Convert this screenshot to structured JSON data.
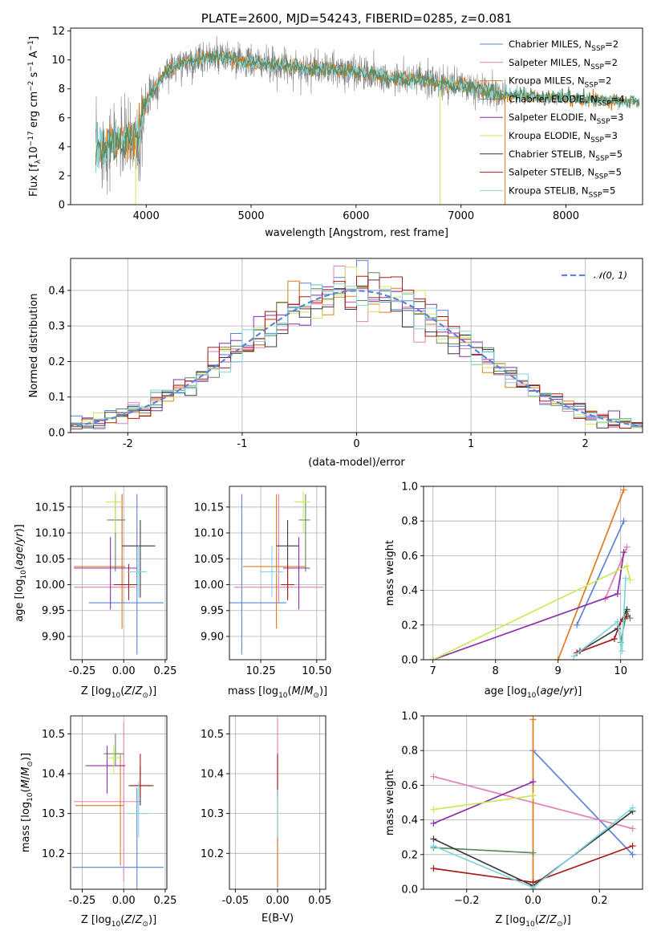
{
  "colors": {
    "Chabrier MILES": "#5b84d6",
    "Salpeter MILES": "#e57fb8",
    "Kroupa MILES": "#e07b1c",
    "Chabrier ELODIE": "#5f8a5f",
    "Salpeter ELODIE": "#8b2fa8",
    "Kroupa ELODIE": "#c9e85a",
    "Chabrier STELIB": "#3c3c3c",
    "Salpeter STELIB": "#a81c1c",
    "Kroupa STELIB": "#7fd6dc"
  },
  "chart_data": [
    {
      "id": "spectrum",
      "type": "line",
      "title": "PLATE=2600, MJD=54243, FIBERID=0285, z=0.081",
      "xlabel": "wavelength [Angstrom, rest frame]",
      "ylabel": "Flux [fλ10⁻¹⁷ erg cm⁻² s⁻¹ A⁻¹]",
      "xlim": [
        3280,
        8730
      ],
      "ylim": [
        0,
        12.2
      ],
      "xticks": [
        4000,
        5000,
        6000,
        7000,
        8000
      ],
      "yticks": [
        0,
        2,
        4,
        6,
        8,
        10,
        12
      ],
      "grid": false,
      "legend_placement": "top-right",
      "legend": [
        {
          "name": "Chabrier MILES",
          "nssp": "2"
        },
        {
          "name": "Salpeter MILES",
          "nssp": "2"
        },
        {
          "name": "Kroupa MILES",
          "nssp": "2"
        },
        {
          "name": "Chabrier ELODIE",
          "nssp": "4"
        },
        {
          "name": "Salpeter ELODIE",
          "nssp": "3"
        },
        {
          "name": "Kroupa ELODIE",
          "nssp": "3"
        },
        {
          "name": "Chabrier STELIB",
          "nssp": "5"
        },
        {
          "name": "Salpeter STELIB",
          "nssp": "5"
        },
        {
          "name": "Kroupa STELIB",
          "nssp": "5"
        }
      ],
      "continuum_wavelength": [
        3520,
        3700,
        3900,
        4000,
        4200,
        4400,
        4600,
        4800,
        5000,
        5200,
        5400,
        5600,
        5800,
        6000,
        6200,
        6400,
        6600,
        6800,
        7000,
        7200,
        7400,
        7600,
        7800,
        8000,
        8200,
        8400,
        8700
      ],
      "continuum_flux": [
        3.8,
        4.3,
        4.6,
        7.2,
        9.3,
        9.9,
        10.2,
        10.1,
        9.8,
        9.7,
        9.5,
        9.4,
        9.3,
        9.2,
        8.9,
        8.7,
        8.6,
        8.4,
        8.2,
        7.9,
        7.6,
        7.5,
        7.4,
        7.4,
        7.3,
        7.2,
        7.1
      ],
      "observed_xrange": [
        3520,
        7430
      ],
      "model_xrange": [
        3520,
        8700
      ]
    },
    {
      "id": "residuals",
      "type": "histogram",
      "xlabel": "(data-model)/error",
      "ylabel": "Normed distribution",
      "xlim": [
        -2.5,
        2.5
      ],
      "ylim": [
        0,
        0.49
      ],
      "xticks": [
        -2,
        -1,
        0,
        1,
        2
      ],
      "yticks": [
        0.0,
        0.1,
        0.2,
        0.3,
        0.4
      ],
      "grid": true,
      "legend_placement": "top-right",
      "legend": [
        {
          "name": "𝒩(0, 1)",
          "style": "dashed"
        }
      ],
      "bin_width": 0.1,
      "reference": {
        "name": "N(0,1)",
        "mean": 0,
        "sigma": 1
      }
    },
    {
      "id": "age-vs-Z",
      "type": "errorbar",
      "xlabel": "Z [log10(Z/Z⊙)]",
      "ylabel": "age  [log10(age/yr)]",
      "xlim": [
        -0.32,
        0.26
      ],
      "ylim": [
        9.855,
        10.19
      ],
      "xticks": [
        -0.25,
        0.0,
        0.25
      ],
      "yticks": [
        9.9,
        9.95,
        10.0,
        10.05,
        10.1,
        10.15
      ],
      "grid": true,
      "points": [
        {
          "series": "Chabrier MILES",
          "x": 0.08,
          "y": 9.965,
          "xerr": [
            0.29,
            0.16
          ],
          "yerr": [
            0.1,
            0.21
          ]
        },
        {
          "series": "Salpeter MILES",
          "x": -0.01,
          "y": 9.995,
          "xerr": [
            0.29,
            0.08
          ],
          "yerr": [
            0.03,
            0.18
          ]
        },
        {
          "series": "Kroupa MILES",
          "x": -0.01,
          "y": 10.035,
          "xerr": [
            0.29,
            0.02
          ],
          "yerr": [
            0.12,
            0.14
          ]
        },
        {
          "series": "Chabrier ELODIE",
          "x": -0.05,
          "y": 10.125,
          "xerr": [
            0.05,
            0.06
          ],
          "yerr": [
            0.1,
            0.05
          ]
        },
        {
          "series": "Salpeter ELODIE",
          "x": -0.08,
          "y": 10.032,
          "xerr": [
            0.22,
            0.16
          ],
          "yerr": [
            0.08,
            0.06
          ]
        },
        {
          "series": "Kroupa ELODIE",
          "x": -0.05,
          "y": 10.16,
          "xerr": [
            0.06,
            0.05
          ],
          "yerr": [
            0.06,
            0.02
          ]
        },
        {
          "series": "Chabrier STELIB",
          "x": 0.1,
          "y": 10.075,
          "xerr": [
            0.11,
            0.09
          ],
          "yerr": [
            0.1,
            0.05
          ]
        },
        {
          "series": "Salpeter STELIB",
          "x": 0.03,
          "y": 10.0,
          "xerr": [
            0.09,
            0.05
          ],
          "yerr": [
            0.03,
            0.04
          ]
        },
        {
          "series": "Kroupa STELIB",
          "x": 0.09,
          "y": 10.025,
          "xerr": [
            0.07,
            0.05
          ],
          "yerr": [
            0.05,
            0.05
          ]
        }
      ]
    },
    {
      "id": "age-vs-mass",
      "type": "errorbar",
      "xlabel": "mass [log10(M/M⊙)]",
      "ylabel": "",
      "xlim": [
        10.11,
        10.54
      ],
      "ylim": [
        9.855,
        10.19
      ],
      "xticks": [
        10.25,
        10.5
      ],
      "yticks": [
        9.9,
        9.95,
        10.0,
        10.05,
        10.1,
        10.15
      ],
      "grid": true,
      "points": [
        {
          "series": "Chabrier MILES",
          "x": 10.165,
          "y": 9.965,
          "xerr": [
            0.12,
            0.2
          ],
          "yerr": [
            0.1,
            0.21
          ]
        },
        {
          "series": "Salpeter MILES",
          "x": 10.33,
          "y": 9.995,
          "xerr": [
            0.2,
            0.2
          ],
          "yerr": [
            0.03,
            0.18
          ]
        },
        {
          "series": "Kroupa MILES",
          "x": 10.32,
          "y": 10.035,
          "xerr": [
            0.15,
            0.13
          ],
          "yerr": [
            0.12,
            0.14
          ]
        },
        {
          "series": "Chabrier ELODIE",
          "x": 10.45,
          "y": 10.125,
          "xerr": [
            0.03,
            0.02
          ],
          "yerr": [
            0.1,
            0.05
          ]
        },
        {
          "series": "Salpeter ELODIE",
          "x": 10.42,
          "y": 10.032,
          "xerr": [
            0.07,
            0.05
          ],
          "yerr": [
            0.08,
            0.06
          ]
        },
        {
          "series": "Kroupa ELODIE",
          "x": 10.44,
          "y": 10.16,
          "xerr": [
            0.04,
            0.03
          ],
          "yerr": [
            0.06,
            0.02
          ]
        },
        {
          "series": "Chabrier STELIB",
          "x": 10.37,
          "y": 10.075,
          "xerr": [
            0.05,
            0.05
          ],
          "yerr": [
            0.1,
            0.05
          ]
        },
        {
          "series": "Salpeter STELIB",
          "x": 10.37,
          "y": 10.0,
          "xerr": [
            0.03,
            0.03
          ],
          "yerr": [
            0.03,
            0.04
          ]
        },
        {
          "series": "Kroupa STELIB",
          "x": 10.3,
          "y": 10.025,
          "xerr": [
            0.05,
            0.05
          ],
          "yerr": [
            0.05,
            0.05
          ]
        }
      ]
    },
    {
      "id": "weight-vs-age",
      "type": "line",
      "xlabel": "age  [log10(age/yr)]",
      "ylabel": "mass weight",
      "xlim": [
        6.85,
        10.35
      ],
      "ylim": [
        0,
        1.0
      ],
      "xticks": [
        7,
        8,
        9,
        10
      ],
      "yticks": [
        0.0,
        0.2,
        0.4,
        0.6,
        0.8,
        1.0
      ],
      "grid": true,
      "series": [
        {
          "name": "Chabrier MILES",
          "x": [
            9.3,
            10.05
          ],
          "y": [
            0.2,
            0.8
          ]
        },
        {
          "name": "Salpeter MILES",
          "x": [
            9.75,
            10.1
          ],
          "y": [
            0.35,
            0.65
          ]
        },
        {
          "name": "Kroupa MILES",
          "x": [
            9.0,
            10.05
          ],
          "y": [
            0.0,
            0.98
          ]
        },
        {
          "name": "Chabrier ELODIE",
          "x": [
            10.0,
            10.1,
            10.15
          ],
          "y": [
            0.1,
            0.28,
            0.24
          ]
        },
        {
          "name": "Salpeter ELODIE",
          "x": [
            7.0,
            9.95,
            10.05
          ],
          "y": [
            0.0,
            0.38,
            0.62
          ]
        },
        {
          "name": "Kroupa ELODIE",
          "x": [
            7.0,
            10.1,
            10.15
          ],
          "y": [
            0.0,
            0.54,
            0.46
          ]
        },
        {
          "name": "Chabrier STELIB",
          "x": [
            9.35,
            9.95,
            10.1
          ],
          "y": [
            0.05,
            0.18,
            0.29
          ]
        },
        {
          "name": "Salpeter STELIB",
          "x": [
            9.3,
            9.9,
            10.0,
            10.1
          ],
          "y": [
            0.04,
            0.12,
            0.22,
            0.25
          ]
        },
        {
          "name": "Kroupa STELIB",
          "x": [
            9.25,
            9.95,
            10.02,
            10.08
          ],
          "y": [
            0.02,
            0.22,
            0.05,
            0.47
          ]
        }
      ]
    },
    {
      "id": "mass-vs-Z",
      "type": "errorbar",
      "xlabel": "Z [log10(Z/Z⊙)]",
      "ylabel": "mass [log10(M/M⊙)]",
      "xlim": [
        -0.32,
        0.26
      ],
      "ylim": [
        10.11,
        10.545
      ],
      "xticks": [
        -0.25,
        0.0,
        0.25
      ],
      "yticks": [
        10.2,
        10.3,
        10.4,
        10.5
      ],
      "grid": true,
      "points": [
        {
          "series": "Chabrier MILES",
          "x": 0.08,
          "y": 10.165,
          "xerr": [
            0.39,
            0.16
          ],
          "yerr": [
            0.12,
            0.2
          ]
        },
        {
          "series": "Salpeter MILES",
          "x": 0.0,
          "y": 10.33,
          "xerr": [
            0.3,
            0.1
          ],
          "yerr": [
            0.2,
            0.2
          ]
        },
        {
          "series": "Kroupa MILES",
          "x": -0.02,
          "y": 10.32,
          "xerr": [
            0.27,
            0.02
          ],
          "yerr": [
            0.15,
            0.13
          ]
        },
        {
          "series": "Chabrier ELODIE",
          "x": -0.05,
          "y": 10.45,
          "xerr": [
            0.07,
            0.05
          ],
          "yerr": [
            0.03,
            0.05
          ]
        },
        {
          "series": "Salpeter ELODIE",
          "x": -0.1,
          "y": 10.42,
          "xerr": [
            0.13,
            0.11
          ],
          "yerr": [
            0.07,
            0.05
          ]
        },
        {
          "series": "Kroupa ELODIE",
          "x": -0.06,
          "y": 10.44,
          "xerr": [
            0.04,
            0.04
          ],
          "yerr": [
            0.04,
            0.03
          ]
        },
        {
          "series": "Chabrier STELIB",
          "x": 0.1,
          "y": 10.37,
          "xerr": [
            0.07,
            0.08
          ],
          "yerr": [
            0.05,
            0.05
          ]
        },
        {
          "series": "Salpeter STELIB",
          "x": 0.1,
          "y": 10.37,
          "xerr": [
            0.05,
            0.06
          ],
          "yerr": [
            0.03,
            0.08
          ]
        },
        {
          "series": "Kroupa STELIB",
          "x": 0.09,
          "y": 10.3,
          "xerr": [
            0.07,
            0.06
          ],
          "yerr": [
            0.06,
            0.08
          ]
        }
      ]
    },
    {
      "id": "mass-vs-EBV",
      "type": "errorbar",
      "xlabel": "E(B-V)",
      "ylabel": "",
      "xlim": [
        -0.057,
        0.057
      ],
      "ylim": [
        10.11,
        10.545
      ],
      "xticks": [
        -0.05,
        0.0,
        0.05
      ],
      "yticks": [
        10.2,
        10.3,
        10.4,
        10.5
      ],
      "grid": true,
      "points": [
        {
          "series": "Chabrier MILES",
          "x": 0.0,
          "y": 10.165,
          "xerr": [
            0,
            0
          ],
          "yerr": [
            0.05,
            0.2
          ]
        },
        {
          "series": "Salpeter MILES",
          "x": 0.0,
          "y": 10.33,
          "xerr": [
            0,
            0
          ],
          "yerr": [
            0.2,
            0.21
          ]
        },
        {
          "series": "Kroupa MILES",
          "x": 0.0,
          "y": 10.32,
          "xerr": [
            0,
            0
          ],
          "yerr": [
            0.2,
            0.13
          ]
        },
        {
          "series": "Salpeter STELIB",
          "x": 0.0,
          "y": 10.37,
          "xerr": [
            0,
            0
          ],
          "yerr": [
            0.03,
            0.08
          ]
        },
        {
          "series": "Kroupa STELIB",
          "x": 0.0,
          "y": 10.3,
          "xerr": [
            0,
            0
          ],
          "yerr": [
            0.06,
            0.06
          ]
        }
      ]
    },
    {
      "id": "weight-vs-Z",
      "type": "line",
      "xlabel": "Z [log10(Z/Z⊙)]",
      "ylabel": "mass weight",
      "xlim": [
        -0.33,
        0.33
      ],
      "ylim": [
        0,
        1.0
      ],
      "xticks": [
        -0.2,
        0.0,
        0.2
      ],
      "yticks": [
        0.0,
        0.2,
        0.4,
        0.6,
        0.8,
        1.0
      ],
      "grid": true,
      "series": [
        {
          "name": "Chabrier MILES",
          "x": [
            0.0,
            0.3
          ],
          "y": [
            0.8,
            0.2
          ]
        },
        {
          "name": "Salpeter MILES",
          "x": [
            -0.3,
            0.3
          ],
          "y": [
            0.65,
            0.35
          ]
        },
        {
          "name": "Kroupa MILES",
          "x": [
            0.0,
            0.0
          ],
          "y": [
            0.0,
            0.98
          ]
        },
        {
          "name": "Chabrier ELODIE",
          "x": [
            -0.3,
            0.0
          ],
          "y": [
            0.24,
            0.21
          ]
        },
        {
          "name": "Salpeter ELODIE",
          "x": [
            -0.3,
            0.0
          ],
          "y": [
            0.38,
            0.62
          ]
        },
        {
          "name": "Kroupa ELODIE",
          "x": [
            -0.3,
            0.0
          ],
          "y": [
            0.46,
            0.54
          ]
        },
        {
          "name": "Chabrier STELIB",
          "x": [
            -0.3,
            0.0,
            0.3
          ],
          "y": [
            0.29,
            0.02,
            0.45
          ]
        },
        {
          "name": "Salpeter STELIB",
          "x": [
            -0.3,
            0.0,
            0.3
          ],
          "y": [
            0.12,
            0.04,
            0.25
          ]
        },
        {
          "name": "Kroupa STELIB",
          "x": [
            -0.3,
            0.0,
            0.3
          ],
          "y": [
            0.25,
            0.01,
            0.47
          ]
        }
      ]
    }
  ]
}
